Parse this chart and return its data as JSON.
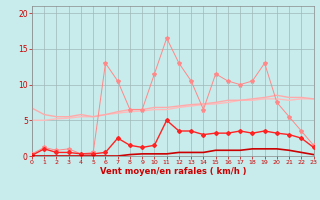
{
  "x": [
    0,
    1,
    2,
    3,
    4,
    5,
    6,
    7,
    8,
    9,
    10,
    11,
    12,
    13,
    14,
    15,
    16,
    17,
    18,
    19,
    20,
    21,
    22,
    23
  ],
  "line_smooth1": [
    6.7,
    5.8,
    5.5,
    5.5,
    5.8,
    5.5,
    5.8,
    6.2,
    6.5,
    6.5,
    6.8,
    6.8,
    7.0,
    7.2,
    7.3,
    7.5,
    7.8,
    7.8,
    8.0,
    8.2,
    8.5,
    8.2,
    8.2,
    8.0
  ],
  "line_smooth2": [
    5.0,
    5.0,
    5.2,
    5.3,
    5.5,
    5.5,
    5.8,
    6.0,
    6.2,
    6.3,
    6.5,
    6.5,
    6.8,
    7.0,
    7.2,
    7.3,
    7.5,
    7.8,
    7.8,
    8.0,
    8.0,
    7.8,
    8.0,
    8.0
  ],
  "line_jagged1": [
    0.3,
    1.2,
    0.8,
    1.0,
    0.3,
    0.5,
    13.0,
    10.5,
    6.5,
    6.5,
    11.5,
    16.5,
    13.0,
    10.5,
    6.5,
    11.5,
    10.5,
    10.0,
    10.5,
    13.0,
    7.5,
    5.5,
    3.5,
    1.5
  ],
  "line_jagged2": [
    0.1,
    1.0,
    0.5,
    0.5,
    0.3,
    0.3,
    0.5,
    2.5,
    1.5,
    1.2,
    1.5,
    5.0,
    3.5,
    3.5,
    3.0,
    3.2,
    3.2,
    3.5,
    3.2,
    3.5,
    3.2,
    3.0,
    2.5,
    1.2
  ],
  "line_flat": [
    0.0,
    0.0,
    0.0,
    0.0,
    0.0,
    0.0,
    0.0,
    0.0,
    0.2,
    0.3,
    0.3,
    0.3,
    0.5,
    0.5,
    0.5,
    0.8,
    0.8,
    0.8,
    1.0,
    1.0,
    1.0,
    0.8,
    0.5,
    0.2
  ],
  "bg_color": "#c8ecec",
  "grid_color": "#a0b8b8",
  "line_smooth1_color": "#ffaaaa",
  "line_smooth2_color": "#ffbbbb",
  "line_jagged1_color": "#ff8888",
  "line_jagged2_color": "#ff2222",
  "line_flat_color": "#cc0000",
  "xlabel": "Vent moyen/en rafales ( km/h )",
  "yticks": [
    0,
    5,
    10,
    15,
    20
  ],
  "ylim": [
    0,
    21
  ],
  "xlim": [
    0,
    23
  ]
}
